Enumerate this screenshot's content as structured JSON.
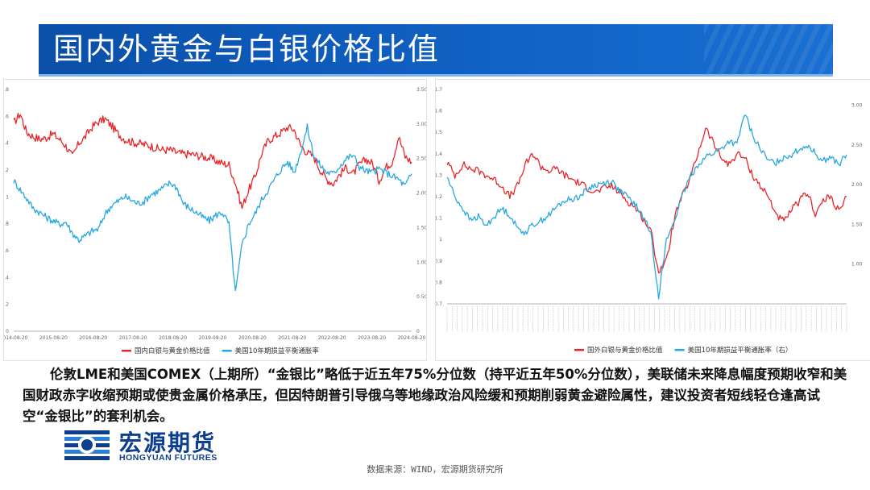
{
  "header": {
    "title": "国内外黄金与白银价格比值"
  },
  "colors": {
    "red_series": "#e8262a",
    "blue_series": "#27a8e0",
    "title_bg": "#0a4fa8",
    "logo": "#0e3f8f"
  },
  "chart_data": [
    {
      "type": "line",
      "x_ticks": [
        "2014-08-20",
        "2015-08-20",
        "2016-08-20",
        "2017-08-20",
        "2018-08-20",
        "2019-08-20",
        "2020-08-20",
        "2021-08-20",
        "2022-08-20",
        "2023-08-20",
        "2024-08-20"
      ],
      "y_left_ticks": [
        "0",
        "0.2",
        "0.4",
        "0.6",
        "0.8",
        "1",
        "1.2",
        "1.4",
        "1.6",
        "1.8"
      ],
      "y_right_ticks": [
        "0",
        "0.50",
        "1.00",
        "1.50",
        "2.00",
        "2.50",
        "3.00",
        "3.50"
      ],
      "ylim_left": [
        0,
        1.8
      ],
      "ylim_right": [
        0,
        3.5
      ],
      "legend_position": "bottom",
      "series": [
        {
          "name": "国内白银与黄金价格比值",
          "axis": "left",
          "values": [
            1.55,
            1.62,
            1.48,
            1.45,
            1.43,
            1.44,
            1.47,
            1.43,
            1.38,
            1.3,
            1.4,
            1.45,
            1.52,
            1.56,
            1.58,
            1.53,
            1.47,
            1.43,
            1.41,
            1.4,
            1.39,
            1.38,
            1.36,
            1.35,
            1.35,
            1.33,
            1.32,
            1.32,
            1.31,
            1.3,
            1.29,
            1.27,
            1.25,
            1.24,
            1.1,
            0.92,
            1.05,
            1.15,
            1.32,
            1.42,
            1.45,
            1.48,
            1.52,
            1.5,
            1.38,
            1.33,
            1.3,
            1.2,
            1.13,
            1.1,
            1.17,
            1.22,
            1.17,
            1.24,
            1.28,
            1.25,
            1.12,
            1.22,
            1.26,
            1.45,
            1.3,
            1.26
          ]
        },
        {
          "name": "美国10年期损益平衡通胀率",
          "axis": "right",
          "values": [
            2.18,
            2.05,
            1.92,
            1.78,
            1.72,
            1.65,
            1.6,
            1.55,
            1.58,
            1.42,
            1.32,
            1.38,
            1.45,
            1.48,
            1.7,
            1.82,
            1.88,
            1.95,
            1.9,
            1.85,
            1.88,
            1.98,
            2.02,
            2.08,
            2.15,
            2.08,
            1.85,
            1.78,
            1.72,
            1.65,
            1.6,
            1.68,
            1.72,
            1.55,
            0.55,
            1.25,
            1.55,
            1.7,
            1.9,
            2.05,
            2.2,
            2.35,
            2.45,
            2.3,
            2.6,
            2.95,
            2.55,
            2.4,
            2.3,
            2.28,
            2.4,
            2.5,
            2.55,
            2.38,
            2.32,
            2.3,
            2.35,
            2.3,
            2.25,
            2.2,
            2.1,
            2.28
          ]
        }
      ]
    },
    {
      "type": "line",
      "y_left_ticks": [
        "0.7",
        "0.8",
        "0.9",
        "1",
        "1.1",
        "1.2",
        "1.3",
        "1.4",
        "1.5",
        "1.6",
        "1.7"
      ],
      "y_right_ticks": [
        "1.00",
        "1.50",
        "2.00",
        "2.50",
        "3.00"
      ],
      "ylim_left": [
        0.7,
        1.7
      ],
      "ylim_right": [
        0.5,
        3.2
      ],
      "legend_position": "bottom",
      "series": [
        {
          "name": "国外白银与黄金价格比值",
          "axis": "left",
          "values": [
            1.36,
            1.3,
            1.35,
            1.33,
            1.32,
            1.3,
            1.28,
            1.25,
            1.2,
            1.25,
            1.35,
            1.4,
            1.34,
            1.32,
            1.33,
            1.3,
            1.28,
            1.26,
            1.24,
            1.22,
            1.24,
            1.25,
            1.22,
            1.18,
            1.15,
            1.1,
            1.04,
            0.85,
            0.9,
            1.1,
            1.2,
            1.28,
            1.4,
            1.52,
            1.45,
            1.38,
            1.35,
            1.4,
            1.38,
            1.3,
            1.25,
            1.2,
            1.12,
            1.08,
            1.14,
            1.18,
            1.22,
            1.12,
            1.18,
            1.2,
            1.13,
            1.2
          ]
        },
        {
          "name": "美国10年期损益平衡通胀率（右）",
          "axis": "right",
          "values": [
            2.1,
            1.85,
            1.7,
            1.55,
            1.6,
            1.48,
            1.6,
            1.7,
            1.62,
            1.45,
            1.4,
            1.5,
            1.55,
            1.62,
            1.72,
            1.8,
            1.82,
            1.86,
            1.95,
            2.0,
            2.02,
            2.05,
            1.92,
            1.85,
            1.75,
            1.6,
            1.4,
            0.6,
            1.3,
            1.55,
            1.85,
            2.1,
            2.25,
            2.35,
            2.4,
            2.45,
            2.55,
            2.5,
            2.9,
            2.62,
            2.45,
            2.3,
            2.28,
            2.35,
            2.38,
            2.45,
            2.5,
            2.4,
            2.3,
            2.35,
            2.25,
            2.38
          ]
        }
      ]
    }
  ],
  "description": "伦敦LME和美国COMEX（上期所）“金银比”略低于近五年75%分位数（持平近五年50%分位数），美联储未来降息幅度预期收窄和美国财政赤字收缩预期或使贵金属价格承压，但因特朗普引导俄乌等地缘政治风险缓和预期削弱黄金避险属性，建议投资者短线轻仓逢高试空“金银比”的套利机会。",
  "logo": {
    "cn": "宏源期货",
    "en": "HONGYUAN FUTURES"
  },
  "source": "数据来源：WIND，宏源期货研究所"
}
